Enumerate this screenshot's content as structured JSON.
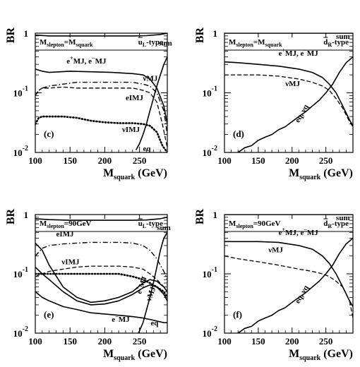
{
  "axis_common": {
    "y_label": "BR",
    "x_label_main": "M",
    "x_label_sub": "squark",
    "x_label_unit": "(GeV)"
  },
  "chart_data": [
    {
      "id": "c",
      "type": "line",
      "panel_label": "(c)",
      "header_left": {
        "main1": "M",
        "sub1": "slepton",
        "mid": "=M",
        "sub2": "squark"
      },
      "header_right": {
        "main": "u",
        "bar": true,
        "sub": "L",
        "tail": "-type"
      },
      "xlim": [
        100,
        290
      ],
      "ylim": [
        0.01,
        1
      ],
      "yscale": "log",
      "xticks": [
        100,
        150,
        200,
        250
      ],
      "yticks": [
        {
          "v": 1,
          "label": "1"
        },
        {
          "v": 0.1,
          "label": "10",
          "sup": "-1"
        },
        {
          "v": 0.01,
          "label": "10",
          "sup": "-2"
        }
      ],
      "series": [
        {
          "style": "solid",
          "x": [
            100,
            120,
            150,
            180,
            210,
            240,
            260,
            280,
            290
          ],
          "y": [
            0.93,
            0.9,
            0.9,
            0.9,
            0.9,
            0.9,
            0.91,
            0.95,
            1.0
          ]
        },
        {
          "style": "solid",
          "x": [
            100,
            110,
            120,
            150,
            180,
            210,
            240,
            255,
            265,
            275,
            285,
            290
          ],
          "y": [
            0.25,
            0.23,
            0.22,
            0.23,
            0.225,
            0.22,
            0.21,
            0.2,
            0.17,
            0.12,
            0.06,
            0.03
          ]
        },
        {
          "style": "dashdot",
          "x": [
            100,
            105,
            110,
            120,
            140,
            160,
            180,
            200,
            220,
            240,
            255,
            265,
            275,
            285,
            290
          ],
          "y": [
            0.09,
            0.11,
            0.12,
            0.13,
            0.14,
            0.15,
            0.15,
            0.15,
            0.15,
            0.15,
            0.14,
            0.13,
            0.1,
            0.05,
            0.02
          ]
        },
        {
          "style": "dashed",
          "x": [
            100,
            105,
            110,
            120,
            140,
            160,
            180,
            200,
            220,
            240,
            255,
            265,
            275,
            283,
            290
          ],
          "y": [
            0.09,
            0.11,
            0.12,
            0.12,
            0.125,
            0.12,
            0.12,
            0.12,
            0.12,
            0.12,
            0.11,
            0.1,
            0.07,
            0.03,
            0.012
          ]
        },
        {
          "style": "dotted",
          "x": [
            100,
            105,
            110,
            120,
            140,
            160,
            180,
            200,
            220,
            240,
            255,
            265,
            275,
            283,
            290
          ],
          "y": [
            0.03,
            0.038,
            0.04,
            0.04,
            0.04,
            0.038,
            0.034,
            0.032,
            0.031,
            0.031,
            0.03,
            0.028,
            0.022,
            0.013,
            0.01
          ]
        },
        {
          "style": "solid",
          "x": [
            245,
            250,
            255,
            260,
            265,
            270,
            275,
            280,
            285,
            290
          ],
          "y": [
            0.011,
            0.014,
            0.02,
            0.03,
            0.05,
            0.08,
            0.13,
            0.2,
            0.3,
            0.4
          ]
        }
      ],
      "annotations": [
        {
          "text": "sum",
          "x": 277,
          "y": 0.62
        },
        {
          "parts": [
            [
              "e",
              ""
            ],
            [
              "+",
              "sup"
            ],
            [
              "MJ, e",
              ""
            ],
            [
              "−",
              "sup"
            ],
            [
              "MJ",
              ""
            ]
          ],
          "x": 145,
          "y": 0.31
        },
        {
          "text": "νMJ",
          "x": 255,
          "y": 0.16
        },
        {
          "text": "eIMJ",
          "x": 230,
          "y": 0.075
        },
        {
          "text": "νIMJ",
          "x": 225,
          "y": 0.022
        },
        {
          "text": "eq",
          "x": 255,
          "y": 0.0105
        }
      ]
    },
    {
      "id": "d",
      "type": "line",
      "panel_label": "(d)",
      "header_left": {
        "main1": "M",
        "sub1": "slepton",
        "mid": "=M",
        "sub2": "squark"
      },
      "header_right": {
        "main": "d",
        "bar": true,
        "sub": "R",
        "tail": "-type"
      },
      "xlim": [
        100,
        290
      ],
      "ylim": [
        0.01,
        1
      ],
      "yscale": "log",
      "xticks": [
        100,
        150,
        200,
        250
      ],
      "yticks": [
        {
          "v": 1,
          "label": "1"
        },
        {
          "v": 0.1,
          "label": "10",
          "sup": "-1"
        },
        {
          "v": 0.01,
          "label": "10",
          "sup": "-2"
        }
      ],
      "series": [
        {
          "style": "solid",
          "x": [
            100,
            150,
            200,
            250,
            290
          ],
          "y": [
            1.0,
            1.0,
            1.0,
            1.0,
            1.0
          ]
        },
        {
          "style": "solid",
          "x": [
            100,
            120,
            150,
            180,
            210,
            230,
            245,
            255,
            265,
            275,
            285,
            290
          ],
          "y": [
            0.33,
            0.32,
            0.3,
            0.28,
            0.25,
            0.22,
            0.18,
            0.14,
            0.1,
            0.06,
            0.035,
            0.028
          ]
        },
        {
          "style": "dashed",
          "x": [
            100,
            120,
            150,
            180,
            210,
            230,
            245,
            255,
            265,
            275,
            285,
            290
          ],
          "y": [
            0.2,
            0.2,
            0.2,
            0.19,
            0.17,
            0.15,
            0.13,
            0.11,
            0.08,
            0.055,
            0.033,
            0.027
          ]
        },
        {
          "style": "solid",
          "x": [
            120,
            130,
            140,
            150,
            160,
            170,
            180,
            190,
            200,
            210,
            220,
            230,
            240,
            250,
            260,
            270,
            280,
            290
          ],
          "y": [
            0.01,
            0.012,
            0.013,
            0.016,
            0.018,
            0.02,
            0.024,
            0.027,
            0.033,
            0.04,
            0.048,
            0.06,
            0.075,
            0.1,
            0.14,
            0.22,
            0.32,
            0.4
          ]
        }
      ],
      "annotations": [
        {
          "text": "sum",
          "x": 265,
          "y": 0.8
        },
        {
          "parts": [
            [
              "e",
              ""
            ],
            [
              "+",
              "sup"
            ],
            [
              "MJ, e",
              ""
            ],
            [
              "−",
              "sup"
            ],
            [
              "MJ",
              ""
            ]
          ],
          "x": 180,
          "y": 0.42
        },
        {
          "text": "νMJ",
          "x": 190,
          "y": 0.13
        },
        {
          "text": "eq, νq",
          "x": 210,
          "y": 0.031,
          "rotate": -60
        }
      ]
    },
    {
      "id": "e",
      "type": "line",
      "panel_label": "(e)",
      "header_left": {
        "main1": "M",
        "sub1": "slepton",
        "mid": "=90GeV",
        "sub2": ""
      },
      "header_right": {
        "main": "u",
        "bar": true,
        "sub": "L",
        "tail": "-type"
      },
      "xlim": [
        100,
        290
      ],
      "ylim": [
        0.01,
        1
      ],
      "yscale": "log",
      "xticks": [
        100,
        150,
        200,
        250
      ],
      "yticks": [
        {
          "v": 1,
          "label": "1"
        },
        {
          "v": 0.1,
          "label": "10",
          "sup": "-1"
        },
        {
          "v": 0.01,
          "label": "10",
          "sup": "-2"
        }
      ],
      "series": [
        {
          "style": "solid",
          "x": [
            100,
            120,
            150,
            180,
            210,
            240,
            260,
            280,
            290
          ],
          "y": [
            0.85,
            0.82,
            0.8,
            0.8,
            0.8,
            0.8,
            0.81,
            0.85,
            0.9
          ]
        },
        {
          "style": "dashdot",
          "x": [
            100,
            110,
            120,
            140,
            160,
            180,
            200,
            220,
            240,
            255,
            265,
            275,
            285,
            290
          ],
          "y": [
            0.2,
            0.27,
            0.3,
            0.32,
            0.33,
            0.34,
            0.34,
            0.34,
            0.33,
            0.3,
            0.25,
            0.18,
            0.11,
            0.08
          ]
        },
        {
          "style": "dashed",
          "x": [
            100,
            110,
            120,
            140,
            160,
            180,
            200,
            220,
            240,
            255,
            265,
            275,
            285,
            290
          ],
          "y": [
            0.09,
            0.1,
            0.11,
            0.12,
            0.13,
            0.135,
            0.135,
            0.135,
            0.13,
            0.12,
            0.1,
            0.08,
            0.06,
            0.05
          ]
        },
        {
          "style": "dotted",
          "x": [
            100,
            110,
            120,
            140,
            160,
            180,
            200,
            220,
            240,
            255,
            265,
            275,
            285,
            290
          ],
          "y": [
            0.1,
            0.1,
            0.1,
            0.1,
            0.1,
            0.1,
            0.1,
            0.1,
            0.09,
            0.08,
            0.07,
            0.06,
            0.05,
            0.04
          ]
        },
        {
          "style": "solid",
          "x": [
            100,
            110,
            120,
            140,
            160,
            180,
            200,
            220,
            240,
            255,
            265,
            275,
            285,
            290
          ],
          "y": [
            0.33,
            0.25,
            0.14,
            0.06,
            0.04,
            0.033,
            0.035,
            0.04,
            0.05,
            0.07,
            0.08,
            0.075,
            0.06,
            0.05
          ]
        },
        {
          "style": "solid",
          "x": [
            100,
            110,
            120,
            140,
            160,
            180,
            200,
            220,
            240,
            255,
            265,
            275,
            285,
            290
          ],
          "y": [
            0.13,
            0.1,
            0.08,
            0.05,
            0.035,
            0.03,
            0.031,
            0.035,
            0.045,
            0.058,
            0.065,
            0.06,
            0.045,
            0.035
          ]
        },
        {
          "style": "solid",
          "x": [
            100,
            110,
            120,
            140,
            160,
            180,
            200,
            220,
            240,
            255,
            265,
            275,
            285,
            290
          ],
          "y": [
            0.05,
            0.04,
            0.035,
            0.028,
            0.025,
            0.022,
            0.021,
            0.02,
            0.019,
            0.018,
            0.017,
            0.016,
            0.015,
            0.015
          ]
        },
        {
          "style": "solid",
          "x": [
            245,
            255,
            265,
            270,
            275,
            280,
            285,
            290
          ],
          "y": [
            0.008,
            0.015,
            0.04,
            0.07,
            0.13,
            0.25,
            0.4,
            0.5
          ]
        }
      ],
      "annotations": [
        {
          "text": "sum",
          "x": 275,
          "y": 0.55
        },
        {
          "text": "eIMJ",
          "x": 130,
          "y": 0.43
        },
        {
          "text": "νIMJ",
          "x": 138,
          "y": 0.145
        },
        {
          "parts": [
            [
              "e",
              ""
            ],
            [
              "+",
              "sup"
            ],
            [
              "MJ",
              ""
            ]
          ],
          "x": 252,
          "y": 0.045,
          "rotate": -70
        },
        {
          "parts": [
            [
              "νMJ",
              ""
            ],
            [
              "−",
              "sup"
            ]
          ],
          "x": 266,
          "y": 0.034,
          "rotate": -70
        },
        {
          "parts": [
            [
              "e",
              ""
            ],
            [
              "−",
              "sup"
            ],
            [
              "MJ",
              ""
            ]
          ],
          "x": 210,
          "y": 0.0155
        },
        {
          "text": "eq",
          "x": 266,
          "y": 0.0135
        }
      ]
    },
    {
      "id": "f",
      "type": "line",
      "panel_label": "(f)",
      "header_left": {
        "main1": "M",
        "sub1": "slepton",
        "mid": "=90GeV",
        "sub2": ""
      },
      "header_right": {
        "main": "d",
        "bar": true,
        "sub": "R",
        "tail": "-type"
      },
      "xlim": [
        100,
        290
      ],
      "ylim": [
        0.01,
        1
      ],
      "yscale": "log",
      "xticks": [
        100,
        150,
        200,
        250
      ],
      "yticks": [
        {
          "v": 1,
          "label": "1"
        },
        {
          "v": 0.1,
          "label": "10",
          "sup": "-1"
        },
        {
          "v": 0.01,
          "label": "10",
          "sup": "-2"
        }
      ],
      "series": [
        {
          "style": "solid",
          "x": [
            100,
            150,
            200,
            250,
            290
          ],
          "y": [
            1.0,
            1.0,
            1.0,
            1.0,
            1.0
          ]
        },
        {
          "style": "solid",
          "x": [
            100,
            120,
            150,
            180,
            210,
            230,
            245,
            255,
            265,
            275,
            285,
            290
          ],
          "y": [
            0.35,
            0.35,
            0.35,
            0.34,
            0.3,
            0.26,
            0.2,
            0.15,
            0.1,
            0.06,
            0.035,
            0.028
          ]
        },
        {
          "style": "dashed",
          "x": [
            100,
            120,
            150,
            180,
            210,
            230,
            245,
            255,
            265,
            275,
            285,
            290
          ],
          "y": [
            0.2,
            0.18,
            0.16,
            0.14,
            0.12,
            0.11,
            0.1,
            0.09,
            0.075,
            0.06,
            0.035,
            0.018
          ]
        },
        {
          "style": "solid",
          "x": [
            120,
            130,
            140,
            150,
            160,
            170,
            180,
            190,
            200,
            210,
            220,
            230,
            240,
            250,
            260,
            270,
            280,
            290
          ],
          "y": [
            0.01,
            0.012,
            0.013,
            0.016,
            0.018,
            0.02,
            0.024,
            0.027,
            0.033,
            0.04,
            0.048,
            0.06,
            0.075,
            0.1,
            0.14,
            0.22,
            0.32,
            0.4
          ]
        }
      ],
      "annotations": [
        {
          "text": "sum",
          "x": 265,
          "y": 0.8
        },
        {
          "parts": [
            [
              "e",
              ""
            ],
            [
              "+",
              "sup"
            ],
            [
              "MJ, e",
              ""
            ],
            [
              "−",
              "sup"
            ],
            [
              "MJ",
              ""
            ]
          ],
          "x": 180,
          "y": 0.45
        },
        {
          "text": "νMJ",
          "x": 165,
          "y": 0.23
        },
        {
          "text": "eq, νq",
          "x": 210,
          "y": 0.031,
          "rotate": -60
        }
      ]
    }
  ]
}
